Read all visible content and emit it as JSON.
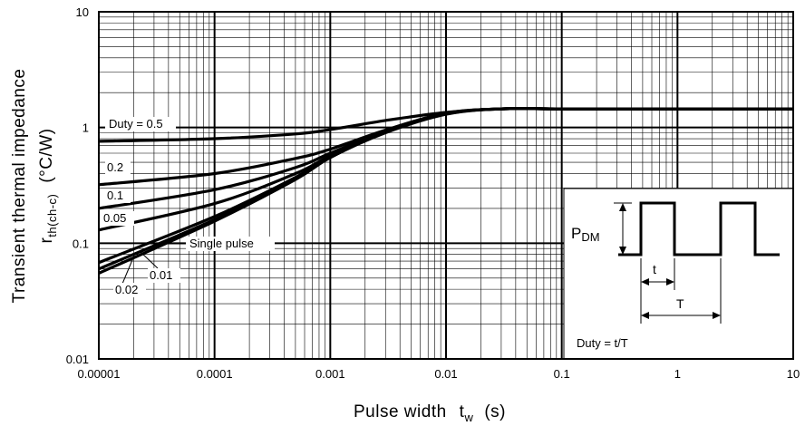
{
  "chart_data": {
    "type": "line",
    "xscale": "log",
    "yscale": "log",
    "xlim": [
      1e-05,
      10
    ],
    "ylim": [
      0.01,
      10
    ],
    "grid": true,
    "xlabel_main": "Pulse width",
    "xlabel_sym": "t",
    "xlabel_sub": "w",
    "xlabel_unit": "(s)",
    "ylabel_line1": "Transient thermal impedance",
    "ylabel_sym": "r",
    "ylabel_sub": "th(ch-c)",
    "ylabel_unit": "(°C/W)",
    "x_ticks": [
      "0.00001",
      "0.0001",
      "0.001",
      "0.01",
      "0.1",
      "1",
      "10"
    ],
    "y_ticks": [
      "0.01",
      "0.1",
      "1",
      "10"
    ],
    "series": [
      {
        "name": "Duty = 0.5",
        "x": [
          1e-05,
          0.0001,
          0.0005,
          0.001,
          0.003,
          0.01,
          0.03,
          0.1,
          1,
          10
        ],
        "y": [
          0.76,
          0.8,
          0.88,
          0.96,
          1.15,
          1.35,
          1.45,
          1.45,
          1.45,
          1.45
        ]
      },
      {
        "name": "0.2",
        "x": [
          1e-05,
          0.0001,
          0.0005,
          0.001,
          0.003,
          0.01,
          0.03,
          0.1,
          1,
          10
        ],
        "y": [
          0.32,
          0.4,
          0.54,
          0.65,
          0.95,
          1.33,
          1.45,
          1.45,
          1.45,
          1.45
        ]
      },
      {
        "name": "0.1",
        "x": [
          1e-05,
          0.0001,
          0.0005,
          0.001,
          0.003,
          0.01,
          0.03,
          0.1,
          1,
          10
        ],
        "y": [
          0.2,
          0.29,
          0.45,
          0.6,
          0.93,
          1.32,
          1.45,
          1.45,
          1.45,
          1.45
        ]
      },
      {
        "name": "0.05",
        "x": [
          1e-05,
          0.0001,
          0.0005,
          0.001,
          0.003,
          0.01,
          0.03,
          0.1,
          1,
          10
        ],
        "y": [
          0.13,
          0.22,
          0.4,
          0.57,
          0.92,
          1.32,
          1.45,
          1.45,
          1.45,
          1.45
        ]
      },
      {
        "name": "0.02",
        "x": [
          1e-05,
          0.0001,
          0.0005,
          0.001,
          0.003,
          0.01,
          0.03,
          0.1,
          1,
          10
        ],
        "y": [
          0.068,
          0.17,
          0.37,
          0.56,
          0.91,
          1.31,
          1.45,
          1.45,
          1.45,
          1.45
        ]
      },
      {
        "name": "0.01",
        "x": [
          1e-05,
          0.0001,
          0.0005,
          0.001,
          0.003,
          0.01,
          0.03,
          0.1,
          1,
          10
        ],
        "y": [
          0.06,
          0.16,
          0.36,
          0.55,
          0.91,
          1.31,
          1.45,
          1.45,
          1.45,
          1.45
        ]
      },
      {
        "name": "Single pulse",
        "x": [
          1e-05,
          0.0001,
          0.0005,
          0.001,
          0.003,
          0.01,
          0.03,
          0.1,
          1,
          10
        ],
        "y": [
          0.055,
          0.155,
          0.355,
          0.55,
          0.9,
          1.3,
          1.45,
          1.45,
          1.45,
          1.45
        ]
      }
    ],
    "inset": {
      "pdm_main": "P",
      "pdm_sub": "DM",
      "t_label": "t",
      "T_label": "T",
      "duty_text": "Duty = t/T"
    }
  }
}
